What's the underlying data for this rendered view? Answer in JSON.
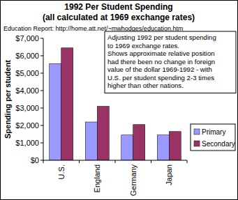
{
  "chart_data": {
    "type": "bar",
    "title": [
      "1992 Per Student Spending",
      "(all calculated at 1969 exchange rates)"
    ],
    "subtitle": "Education Report: http://home.att.net/~mwhodges/education.htm",
    "y_label": "Spending per student",
    "annotation": [
      "Adjusting 1992 per student spending",
      "to 1969 exchange rates.",
      "Shows approximate relative position",
      "had there been no change in foreign",
      "value of the dollar 1969-1992 - with",
      "U.S. per student spending 2-3 times",
      "higher than other nations."
    ],
    "categories": [
      "U.S.",
      "England",
      "Germany",
      "Japan"
    ],
    "series": [
      {
        "name": "Primary",
        "color": "#9999ff",
        "values": [
          5550,
          2200,
          1450,
          1450
        ]
      },
      {
        "name": "Secondary",
        "color": "#993366",
        "values": [
          6450,
          3100,
          2050,
          1650
        ]
      }
    ],
    "ylim": [
      0,
      7000
    ],
    "yticks": [
      {
        "value": 0,
        "label": "$0"
      },
      {
        "value": 1000,
        "label": "$1,000"
      },
      {
        "value": 2000,
        "label": "$2,000"
      },
      {
        "value": 3000,
        "label": "$3,000"
      },
      {
        "value": 4000,
        "label": "$4,000"
      },
      {
        "value": 5000,
        "label": "$5,000"
      },
      {
        "value": 6000,
        "label": "$6,000"
      },
      {
        "value": 7000,
        "label": "$7,000"
      }
    ],
    "grid": false,
    "legend": "right"
  }
}
